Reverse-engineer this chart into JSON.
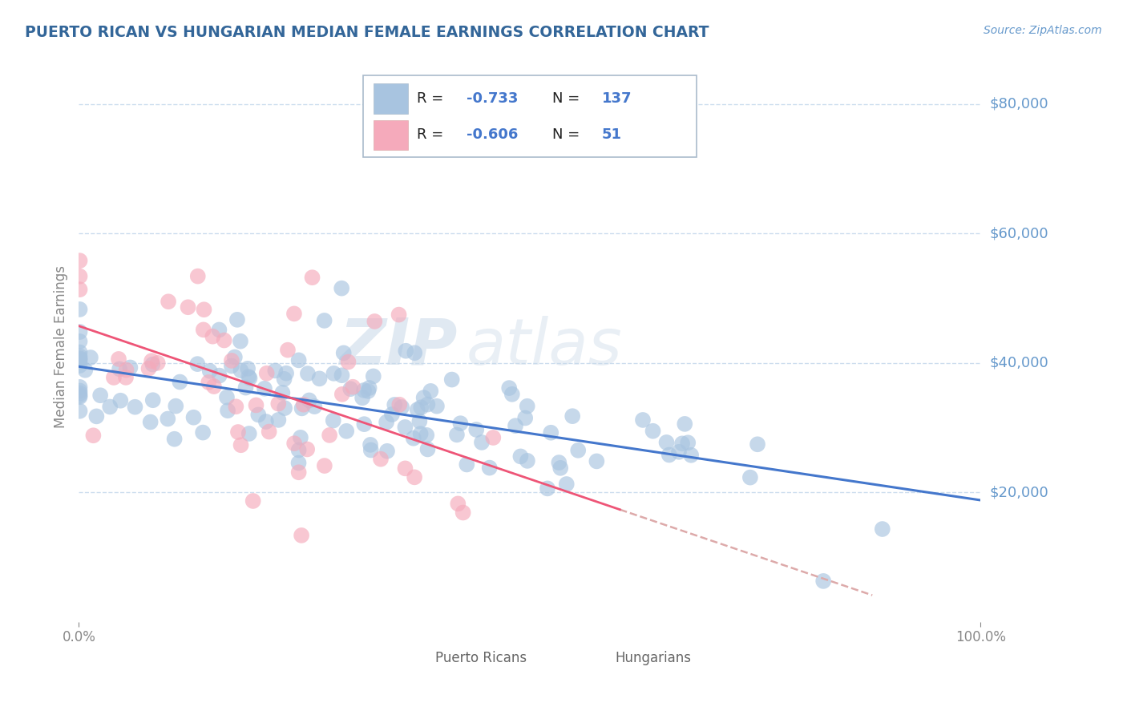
{
  "title": "PUERTO RICAN VS HUNGARIAN MEDIAN FEMALE EARNINGS CORRELATION CHART",
  "source": "Source: ZipAtlas.com",
  "ylabel": "Median Female Earnings",
  "xlim": [
    0,
    1
  ],
  "ylim": [
    0,
    85000
  ],
  "ytick_values": [
    20000,
    40000,
    60000,
    80000
  ],
  "ytick_labels": [
    "$20,000",
    "$40,000",
    "$60,000",
    "$80,000"
  ],
  "xtick_values": [
    0.0,
    1.0
  ],
  "xtick_labels": [
    "0.0%",
    "100.0%"
  ],
  "legend_r_blue": "-0.733",
  "legend_n_blue": "137",
  "legend_r_pink": "-0.606",
  "legend_n_pink": "51",
  "blue_scatter": "#A8C4E0",
  "pink_scatter": "#F5AABB",
  "line_blue": "#4477CC",
  "line_pink": "#EE5577",
  "line_dash": "#DDAAAA",
  "title_color": "#336699",
  "axis_label_color": "#6699CC",
  "tick_color": "#888888",
  "grid_color": "#CCDDEE",
  "watermark_color": "#C8D8E8",
  "background_color": "#FFFFFF",
  "legend_text_dark": "#222222",
  "legend_text_blue": "#4477CC",
  "bottom_legend_color": "#666666"
}
